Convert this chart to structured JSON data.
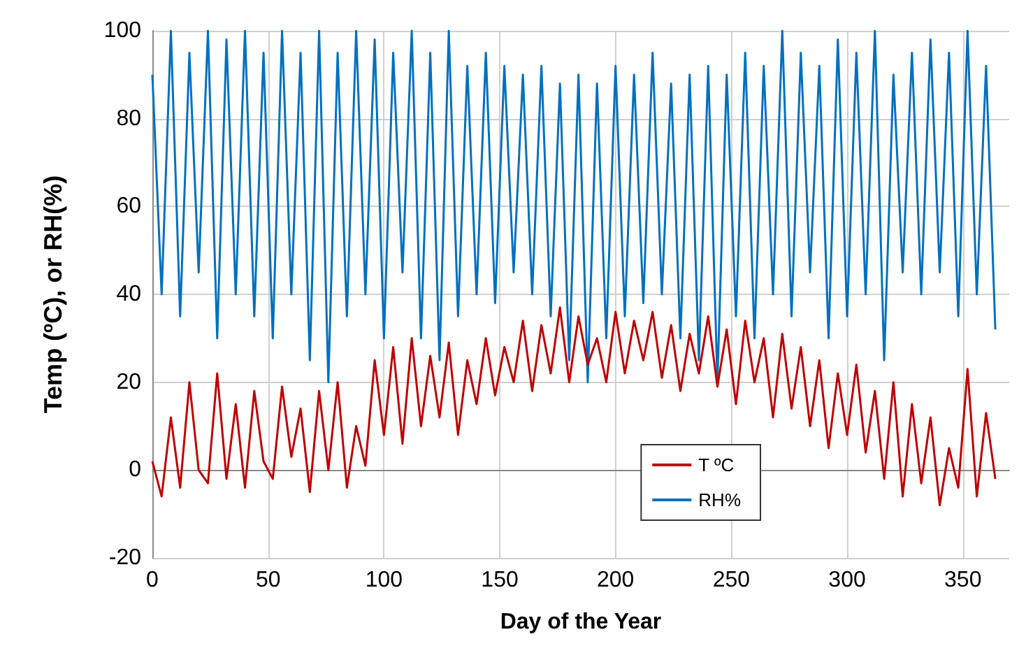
{
  "chart_data": {
    "type": "line",
    "xlabel": "Day of the Year",
    "ylabel": "Temp (ºC), or RH(%)",
    "xlim": [
      0,
      370
    ],
    "xticks": [
      0,
      50,
      100,
      150,
      200,
      250,
      300,
      350
    ],
    "ylim": [
      -20,
      100
    ],
    "yticks": [
      -20,
      0,
      20,
      40,
      60,
      80,
      100
    ],
    "grid": true,
    "legend": "bottom right",
    "marker": "none",
    "line_style": "solid",
    "x": [
      0,
      4,
      8,
      12,
      16,
      20,
      24,
      28,
      32,
      36,
      40,
      44,
      48,
      52,
      56,
      60,
      64,
      68,
      72,
      76,
      80,
      84,
      88,
      92,
      96,
      100,
      104,
      108,
      112,
      116,
      120,
      124,
      128,
      132,
      136,
      140,
      144,
      148,
      152,
      156,
      160,
      164,
      168,
      172,
      176,
      180,
      184,
      188,
      192,
      196,
      200,
      204,
      208,
      212,
      216,
      220,
      224,
      228,
      232,
      236,
      240,
      244,
      248,
      252,
      256,
      260,
      264,
      268,
      272,
      276,
      280,
      284,
      288,
      292,
      296,
      300,
      304,
      308,
      312,
      316,
      320,
      324,
      328,
      332,
      336,
      340,
      344,
      348,
      352,
      356,
      360,
      364
    ],
    "series": [
      {
        "name": "T ºC",
        "color": "#c00000",
        "values": [
          2,
          -6,
          12,
          -4,
          20,
          0,
          -3,
          22,
          -2,
          15,
          -4,
          18,
          2,
          -2,
          19,
          3,
          14,
          -5,
          18,
          0,
          20,
          -4,
          10,
          1,
          25,
          8,
          28,
          6,
          30,
          10,
          26,
          12,
          29,
          8,
          25,
          15,
          30,
          17,
          28,
          20,
          34,
          18,
          33,
          22,
          37,
          20,
          35,
          24,
          30,
          20,
          36,
          22,
          34,
          25,
          36,
          21,
          33,
          18,
          31,
          22,
          35,
          19,
          32,
          15,
          34,
          20,
          30,
          12,
          31,
          14,
          28,
          10,
          25,
          5,
          22,
          8,
          24,
          4,
          18,
          -2,
          20,
          -6,
          15,
          -3,
          12,
          -8,
          5,
          -4,
          23,
          -6,
          13,
          -2
        ]
      },
      {
        "name": "RH%",
        "color": "#0070c0",
        "values": [
          90,
          40,
          100,
          35,
          95,
          45,
          100,
          30,
          98,
          40,
          100,
          35,
          95,
          30,
          100,
          40,
          95,
          25,
          100,
          20,
          95,
          35,
          100,
          40,
          98,
          30,
          95,
          45,
          100,
          30,
          95,
          25,
          100,
          35,
          92,
          40,
          95,
          38,
          92,
          45,
          90,
          40,
          92,
          35,
          88,
          25,
          90,
          20,
          88,
          30,
          92,
          35,
          90,
          38,
          95,
          40,
          88,
          30,
          90,
          25,
          92,
          20,
          90,
          35,
          95,
          30,
          92,
          40,
          100,
          35,
          95,
          45,
          92,
          30,
          98,
          35,
          95,
          40,
          100,
          25,
          90,
          45,
          95,
          40,
          98,
          45,
          95,
          35,
          100,
          40,
          92,
          32
        ]
      }
    ]
  }
}
